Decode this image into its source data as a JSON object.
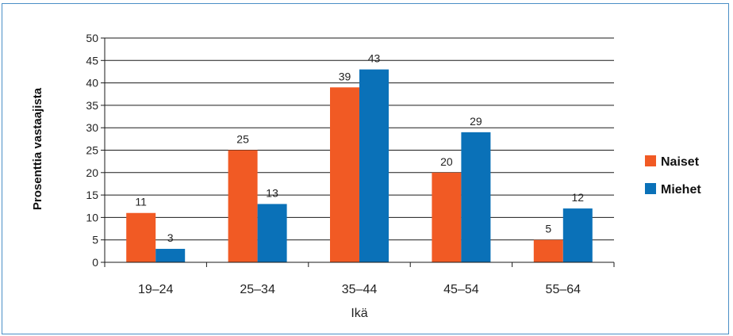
{
  "chart_data": {
    "type": "bar",
    "categories": [
      "19–24",
      "25–34",
      "35–44",
      "45–54",
      "55–64"
    ],
    "series": [
      {
        "name": "Naiset",
        "values": [
          11,
          25,
          39,
          20,
          5
        ],
        "color": "#f15a24"
      },
      {
        "name": "Miehet",
        "values": [
          3,
          13,
          43,
          29,
          12
        ],
        "color": "#0a71b8"
      }
    ],
    "xlabel": "Ikä",
    "ylabel": "Prosenttia vastaajista",
    "ylim": [
      0,
      50
    ],
    "yticks": [
      0,
      5,
      10,
      15,
      20,
      25,
      30,
      35,
      40,
      45,
      50
    ],
    "grid": true,
    "legend": "right"
  }
}
